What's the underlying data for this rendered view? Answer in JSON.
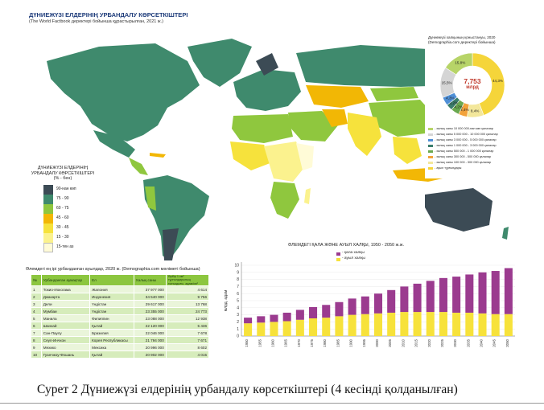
{
  "map": {
    "title": "ДҮНИЕЖҮЗІ ЕЛДЕРІНІҢ УРБАНДАЛУ КӨРСЕТКІШТЕРІ",
    "subtitle": "(The World Factbook деректері бойынша құрастырылған, 2021 ж.)"
  },
  "legend": {
    "title": "ДҮНИЕЖҮЗІ ЕЛДЕРІНІҢ УРБАНДАЛУ КӨРСЕТКІШТЕРІ (% - бен)",
    "items": [
      {
        "label": "90-нан көп",
        "color": "#3c4b55"
      },
      {
        "label": "75 - 90",
        "color": "#3f8a6d"
      },
      {
        "label": "60 - 75",
        "color": "#8fc73e"
      },
      {
        "label": "45 - 60",
        "color": "#f2b705"
      },
      {
        "label": "30 - 45",
        "color": "#f6e23c"
      },
      {
        "label": "15 - 30",
        "color": "#fbf28e"
      },
      {
        "label": "15-тен аз",
        "color": "#fffbd7"
      }
    ]
  },
  "donut": {
    "title": "Дүниежүзі халқының қоныстануы, 2020 (Demographia.com деректері бойынша)",
    "center_value": "7,753",
    "center_unit": "млрд",
    "slices": [
      {
        "label": "44,3%",
        "value": 44.3,
        "color": "#f5d53a"
      },
      {
        "label": "8,4%",
        "value": 8.4,
        "color": "#f3e79b"
      },
      {
        "label": "4,4%",
        "value": 4.4,
        "color": "#f2a23a"
      },
      {
        "label": "4,2%",
        "value": 4.2,
        "color": "#6aa84f"
      },
      {
        "label": "3,2%",
        "value": 3.2,
        "color": "#3a7d6b"
      },
      {
        "label": "4,3%",
        "value": 4.3,
        "color": "#4f8fd6"
      },
      {
        "label": "15,5%",
        "value": 15.5,
        "color": "#d5d5d5"
      },
      {
        "label": "15,8%",
        "value": 15.8,
        "color": "#b7d468"
      }
    ],
    "legend": [
      {
        "label": "- халық саны 10 000 000-нан көп қалалар",
        "color": "#b7d468"
      },
      {
        "label": "- халық саны 5 000 000 - 10 000 000 қалалар",
        "color": "#d5d5d5"
      },
      {
        "label": "- халық саны 3 000 000 - 5 000 000 қалалар",
        "color": "#4f8fd6"
      },
      {
        "label": "- халық саны 1 000 000 - 3 000 000 қалалар",
        "color": "#3a7d6b"
      },
      {
        "label": "- халық саны 500 000 - 1 000 000 қалалар",
        "color": "#6aa84f"
      },
      {
        "label": "- халық саны 300 000 - 500 000 қалалар",
        "color": "#f2a23a"
      },
      {
        "label": "- халық саны 100 000 - 300 000 қалалар",
        "color": "#f3e79b"
      },
      {
        "label": "- ауыл тұрғындары",
        "color": "#f5d53a"
      }
    ]
  },
  "table": {
    "title": "Әлемдегі ең ірі урбанданған ауылдар, 2020 ж. (Demographia.com мәліметі бойынша)",
    "headers": [
      "№",
      "Урбанданған аумақтар",
      "Ел",
      "Халық саны",
      "Әрбір 1 км² тұрғындарының тығыздығы, адам/км²"
    ],
    "rows": [
      [
        "1",
        "Токио-Иокогама",
        "Жапония",
        "37 977 000",
        "4 614"
      ],
      [
        "2",
        "Джакарта",
        "Индонезия",
        "34 540 000",
        "9 756"
      ],
      [
        "3",
        "Дели",
        "Үндістан",
        "29 617 000",
        "13 768"
      ],
      [
        "4",
        "Мумбаи",
        "Үндістан",
        "23 355 000",
        "24 773"
      ],
      [
        "5",
        "Манила",
        "Филиппин",
        "23 088 000",
        "12 938"
      ],
      [
        "6",
        "Шанхай",
        "Қытай",
        "22 120 000",
        "5 436"
      ],
      [
        "7",
        "Сан-Паулу",
        "Бразилия",
        "22 046 000",
        "7 678"
      ],
      [
        "8",
        "Сеул-Инчхон",
        "Корея Республикасы",
        "21 794 000",
        "7 671"
      ],
      [
        "9",
        "Мехико",
        "Мексика",
        "20 996 000",
        "8 602"
      ],
      [
        "10",
        "Гуанчжоу-Фошань",
        "Қытай",
        "20 902 000",
        "4 015"
      ]
    ]
  },
  "chart_data": {
    "type": "bar",
    "title": "ӘЛЕМДЕГІ ҚАЛА ЖӘНЕ АУЫЛ ХАЛҚЫ, 1950 - 2050 ж.ж.",
    "ylabel": "млрд. адам",
    "xlabel": "",
    "ylim": [
      0,
      10
    ],
    "yticks": [
      "0",
      "1",
      "2",
      "3",
      "4",
      "5",
      "6",
      "7",
      "8",
      "9",
      "10"
    ],
    "legend_position": "top",
    "categories": [
      "1950",
      "1955",
      "1960",
      "1965",
      "1970",
      "1975",
      "1980",
      "1985",
      "1990",
      "1995",
      "2000",
      "2005",
      "2010",
      "2015",
      "2020",
      "2025",
      "2030",
      "2035",
      "2040",
      "2045",
      "2050"
    ],
    "series": [
      {
        "name": "- ауыл халқы",
        "color": "#f7e23b",
        "values": [
          1.8,
          1.9,
          2.0,
          2.1,
          2.3,
          2.5,
          2.6,
          2.8,
          3.0,
          3.1,
          3.2,
          3.3,
          3.4,
          3.4,
          3.4,
          3.4,
          3.3,
          3.3,
          3.2,
          3.1,
          3.1
        ]
      },
      {
        "name": "- қала халқы",
        "color": "#9b3b8f",
        "values": [
          0.8,
          0.9,
          1.0,
          1.2,
          1.4,
          1.6,
          1.8,
          2.0,
          2.3,
          2.5,
          2.8,
          3.2,
          3.6,
          4.0,
          4.4,
          4.8,
          5.1,
          5.4,
          5.8,
          6.1,
          6.5
        ]
      }
    ]
  },
  "caption": {
    "prefix": "Сурет 2",
    "text": " Дүниежүзі елдерінің урбандалу көрсеткіштері (4 кесінді қолданылған)"
  }
}
